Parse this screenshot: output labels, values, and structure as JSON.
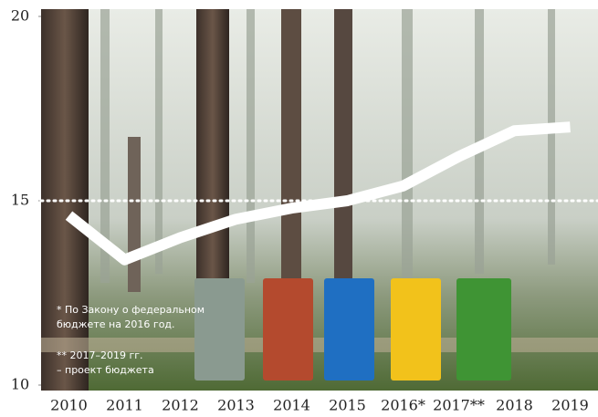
{
  "chart_data": {
    "type": "line",
    "categories": [
      "2010",
      "2011",
      "2012",
      "2013",
      "2014",
      "2015",
      "2016*",
      "2017**",
      "2018",
      "2019"
    ],
    "series": [
      {
        "color": "#ffffff",
        "values": [
          14.6,
          13.4,
          14.0,
          14.5,
          14.8,
          15.0,
          15.4,
          16.2,
          16.9,
          17.0
        ]
      }
    ],
    "ylim": [
      10,
      20
    ],
    "yticks": [
      10,
      15,
      20
    ],
    "dotted_line": 15,
    "notes": [
      "* По Закону о федеральном бюджете на 2016 год.",
      "** 2017–2019 гг. – проект бюджета"
    ]
  }
}
